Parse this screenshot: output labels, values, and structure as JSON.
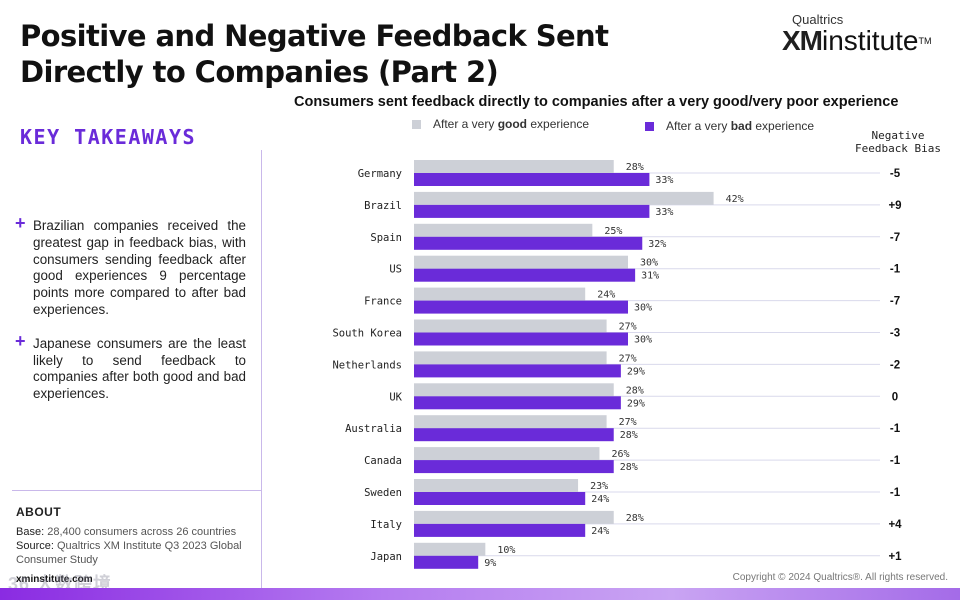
{
  "header": {
    "title": "Positive and Negative Feedback Sent Directly to Companies (Part 2)",
    "logo_small": "Qualtrics",
    "logo_xm": "XM",
    "logo_institute": "institute",
    "logo_tm": "TM"
  },
  "takeaways": {
    "heading": "KEY TAKEAWAYS",
    "items": [
      "Brazilian companies received the greatest gap in feedback bias, with consumers sending feedback after good experiences 9 percentage points more compared to after bad experiences.",
      "Japanese consumers are the least likely to send feedback to companies after both good and bad experiences."
    ]
  },
  "about": {
    "heading": "ABOUT",
    "base_label": "Base:",
    "base_text": "28,400 consumers across 26 countries",
    "source_label": "Source:",
    "source_text": "Qualtrics XM Institute Q3 2023 Global Consumer Study",
    "url": "xminstitute.com"
  },
  "watermark": "36 大数跨境",
  "copyright": "Copyright © 2024 Qualtrics®. All rights reserved.",
  "colors": {
    "good": "#cdd0d7",
    "bad": "#6a2bd9",
    "accent": "#6a2bd9"
  },
  "chart_data": {
    "type": "bar",
    "orientation": "horizontal",
    "title": "Consumers sent feedback directly to companies after a very good/very poor experience",
    "legend": {
      "good_prefix": "After a very ",
      "good_bold": "good",
      "good_suffix": " experience",
      "bad_prefix": "After a very ",
      "bad_bold": "bad",
      "bad_suffix": " experience"
    },
    "bias_header": [
      "Negative",
      "Feedback Bias"
    ],
    "categories": [
      "Germany",
      "Brazil",
      "Spain",
      "US",
      "France",
      "South Korea",
      "Netherlands",
      "UK",
      "Australia",
      "Canada",
      "Sweden",
      "Italy",
      "Japan"
    ],
    "series": [
      {
        "name": "After a very good experience",
        "values": [
          28,
          42,
          25,
          30,
          24,
          27,
          27,
          28,
          27,
          26,
          23,
          28,
          10
        ]
      },
      {
        "name": "After a very bad experience",
        "values": [
          33,
          33,
          32,
          31,
          30,
          30,
          29,
          29,
          28,
          28,
          24,
          24,
          9
        ]
      }
    ],
    "bias_labels": [
      "-5",
      "+9",
      "-7",
      "-1",
      "-7",
      "-3",
      "-2",
      "0",
      "-1",
      "-1",
      "-1",
      "+4",
      "+1"
    ],
    "value_suffix": "%",
    "xlim": [
      0,
      45
    ]
  }
}
